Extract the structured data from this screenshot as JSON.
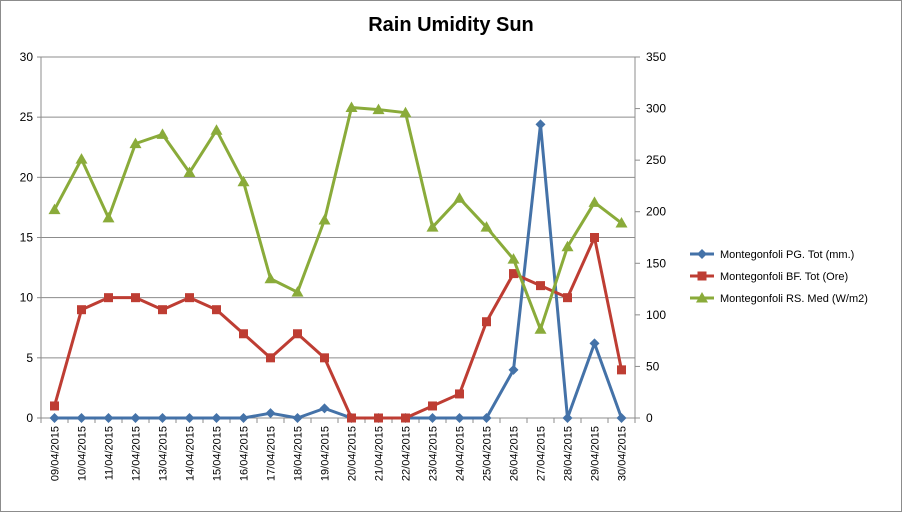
{
  "chart_data": {
    "type": "line",
    "title": "Rain Umidity Sun",
    "categories": [
      "09/04/2015",
      "10/04/2015",
      "11/04/2015",
      "12/04/2015",
      "13/04/2015",
      "14/04/2015",
      "15/04/2015",
      "16/04/2015",
      "17/04/2015",
      "18/04/2015",
      "19/04/2015",
      "20/04/2015",
      "21/04/2015",
      "22/04/2015",
      "23/04/2015",
      "24/04/2015",
      "25/04/2015",
      "26/04/2015",
      "27/04/2015",
      "28/04/2015",
      "29/04/2015",
      "30/04/2015"
    ],
    "y_left": {
      "ticks": [
        "0",
        "5",
        "10",
        "15",
        "20",
        "25",
        "30"
      ],
      "min": 0,
      "max": 30
    },
    "y_right": {
      "ticks": [
        "0",
        "50",
        "100",
        "150",
        "200",
        "250",
        "300",
        "350"
      ],
      "min": 0,
      "max": 350
    },
    "legend_position": "right",
    "series": [
      {
        "name": "Montegonfoli PG. Tot (mm.)",
        "axis": "left",
        "color": "#4472a8",
        "marker": "diamond",
        "values": [
          0,
          0,
          0,
          0,
          0,
          0,
          0,
          0,
          0.4,
          0,
          0.8,
          0,
          0,
          0,
          0,
          0,
          0,
          4,
          24.4,
          0,
          6.2,
          0
        ]
      },
      {
        "name": "Montegonfoli BF. Tot (Ore)",
        "axis": "left",
        "color": "#be3d33",
        "marker": "square",
        "values": [
          1,
          9,
          10,
          10,
          9,
          10,
          9,
          7,
          5,
          7,
          5,
          0,
          0,
          0,
          1,
          2,
          8,
          12,
          11,
          10,
          15,
          4
        ]
      },
      {
        "name": "Montegonfoli RS. Med (W/m2)",
        "axis": "right",
        "color": "#8aab3a",
        "marker": "triangle",
        "values": [
          202,
          251,
          194,
          266,
          275,
          238,
          279,
          229,
          135,
          122,
          192,
          301,
          299,
          296,
          185,
          213,
          185,
          154,
          86,
          166,
          209,
          189
        ]
      }
    ]
  }
}
